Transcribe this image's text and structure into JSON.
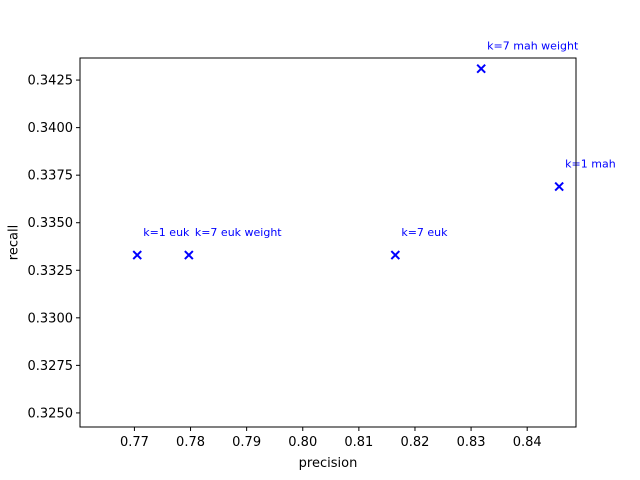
{
  "chart_data": {
    "type": "scatter",
    "title": "",
    "xlabel": "precision",
    "ylabel": "recall",
    "xlim": [
      0.7603,
      0.8487
    ],
    "ylim": [
      0.32426,
      0.34366
    ],
    "xticks": [
      0.77,
      0.78,
      0.79,
      0.8,
      0.81,
      0.82,
      0.83,
      0.84
    ],
    "xtick_labels": [
      "0.77",
      "0.78",
      "0.79",
      "0.80",
      "0.81",
      "0.82",
      "0.83",
      "0.84"
    ],
    "yticks": [
      0.325,
      0.3275,
      0.33,
      0.3325,
      0.335,
      0.3375,
      0.34,
      0.3425
    ],
    "ytick_labels": [
      "0.3250",
      "0.3275",
      "0.3300",
      "0.3325",
      "0.3350",
      "0.3375",
      "0.3400",
      "0.3425"
    ],
    "grid": false,
    "marker": "x",
    "color": "#0000ff",
    "points": [
      {
        "label": "k=1 euk",
        "x": 0.7705,
        "y": 0.3333
      },
      {
        "label": "k=7 euk weight",
        "x": 0.7797,
        "y": 0.3333
      },
      {
        "label": "k=7 euk",
        "x": 0.8165,
        "y": 0.3333
      },
      {
        "label": "k=7 mah weight",
        "x": 0.8318,
        "y": 0.3431
      },
      {
        "label": "k=1 mah",
        "x": 0.8457,
        "y": 0.3369
      }
    ]
  }
}
